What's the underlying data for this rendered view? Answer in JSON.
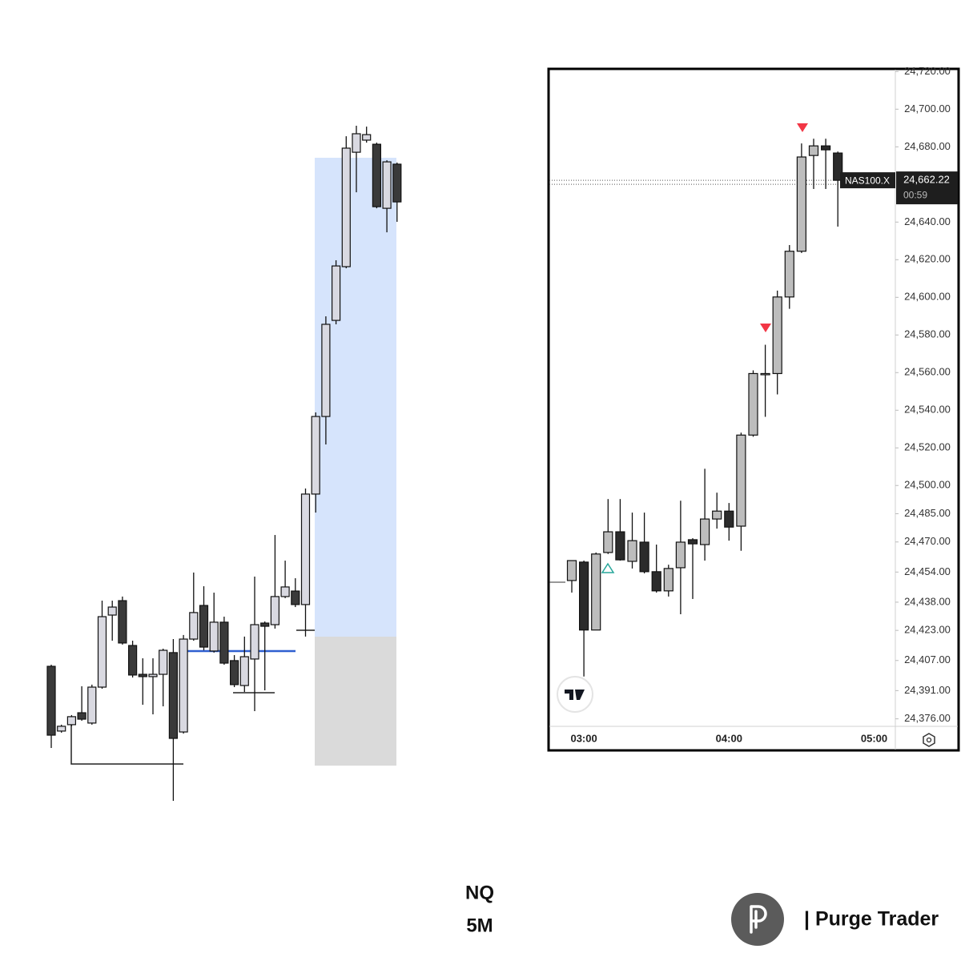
{
  "chart_data": [
    {
      "type": "candlestick",
      "up_color": "#d9d9e1",
      "down_color": "#3a3a3a",
      "open": [
        24393.1,
        24356.7,
        24360.3,
        24367,
        24361.2,
        24381.4,
        24421.9,
        24430,
        24404.8,
        24388.6,
        24387.3,
        24388.6,
        24400.8,
        24356.2,
        24408.4,
        24427.3,
        24401.7,
        24417.9,
        24396.3,
        24382.3,
        24397.2,
        24417.4,
        24416.5,
        24432.3,
        24435.4,
        24427.8,
        24489.9,
        24533.5,
        24587.5,
        24617.7,
        24682,
        24688.8,
        24686.5,
        24650.5,
        24675.3
      ],
      "high": [
        24394.0,
        24360.3,
        24365.7,
        24381.9,
        24382.8,
        24430,
        24430,
        24432.3,
        24407.5,
        24397.6,
        24397.6,
        24403,
        24408.4,
        24410.7,
        24445.8,
        24438.1,
        24434.5,
        24421,
        24399.4,
        24409.8,
        24443.5,
        24418.3,
        24466.9,
        24452.5,
        24442.6,
        24493,
        24535.8,
        24589.8,
        24621.3,
        24691,
        24696.9,
        24696.4,
        24687.4,
        24677.5,
        24676.2
      ],
      "low": [
        24347.2,
        24355.8,
        24359.4,
        24362.5,
        24360.3,
        24380.5,
        24407.5,
        24405.3,
        24386.8,
        24371.5,
        24366.1,
        24370.6,
        24317.5,
        24355.3,
        24407.5,
        24402.1,
        24400.8,
        24394.0,
        24381.4,
        24378.7,
        24367.9,
        24379.6,
        24414.3,
        24431.4,
        24426.4,
        24409.8,
        24479.5,
        24517.8,
        24585.3,
        24616.8,
        24659.5,
        24687.4,
        24650.5,
        24637,
        24642.9
      ],
      "close": [
        24354.4,
        24359.4,
        24364.8,
        24363.4,
        24381.4,
        24421,
        24426.4,
        24406.2,
        24388.2,
        24387.3,
        24388.6,
        24402.1,
        24352.6,
        24408.4,
        24423.3,
        24403.9,
        24417.9,
        24394.9,
        24382.8,
        24398.5,
        24416.5,
        24415.6,
        24432.3,
        24437.7,
        24427.8,
        24489.9,
        24533.5,
        24585.3,
        24618.1,
        24684.3,
        24692.4,
        24691.9,
        24651.4,
        24676.6,
        24654.1
      ]
    },
    {
      "type": "candlestick",
      "up_color": "#bdbdbd",
      "down_color": "#2b2b2b",
      "categories": [
        null,
        "03:00",
        null,
        null,
        null,
        null,
        null,
        null,
        null,
        null,
        null,
        null,
        null,
        "04:00",
        null,
        null,
        null,
        null,
        null,
        null,
        null,
        null,
        null,
        null,
        null,
        "05:00"
      ],
      "open": [
        24449.5,
        24459.3,
        24423.2,
        24464.4,
        24475.4,
        24459.7,
        24469.9,
        24454.2,
        24444.0,
        24456.3,
        24471.2,
        24468.6,
        24482.2,
        24486.4,
        24478.4,
        24526.8,
        24559.1,
        24559.5,
        24600.2,
        24624.5,
        24675.4,
        24680.5,
        24676.7,
        null,
        null,
        null
      ],
      "high": [
        24460.1,
        24460.1,
        24464.4,
        24492.8,
        24492.8,
        24485.6,
        24485.6,
        24468.6,
        24457.9,
        24491.9,
        24472.0,
        24508.9,
        24496.2,
        24490.7,
        24528.1,
        24561.2,
        24574.8,
        24603.6,
        24627.8,
        24681.8,
        24684.3,
        24684.3,
        24677.5,
        null,
        null,
        null
      ],
      "low": [
        24443.1,
        24398.5,
        24423.2,
        24463.6,
        24460.1,
        24455.9,
        24453.3,
        24443.1,
        24441.0,
        24431.6,
        24439.7,
        24460.1,
        24477.1,
        24470.7,
        24465.3,
        24525.9,
        24536.5,
        24548.4,
        24593.9,
        24623.6,
        24657.6,
        24657.6,
        24637.6,
        null,
        null,
        null
      ],
      "close": [
        24460.1,
        24423.2,
        24463.6,
        24475.4,
        24460.5,
        24470.7,
        24454.2,
        24444.0,
        24455.9,
        24469.9,
        24469.0,
        24482.2,
        24486.4,
        24477.9,
        24526.8,
        24559.5,
        24559.5,
        24600.2,
        24624.5,
        24674.6,
        24680.5,
        24678.4,
        24662.22,
        null,
        null,
        null
      ],
      "ylim": [
        24372,
        24721
      ],
      "yticks": [
        {
          "value": 24720,
          "label": "24,720.00"
        },
        {
          "value": 24700,
          "label": "24,700.00"
        },
        {
          "value": 24680,
          "label": "24,680.00"
        },
        {
          "value": 24640,
          "label": "24,640.00"
        },
        {
          "value": 24620,
          "label": "24,620.00"
        },
        {
          "value": 24600,
          "label": "24,600.00"
        },
        {
          "value": 24580,
          "label": "24,580.00"
        },
        {
          "value": 24560,
          "label": "24,560.00"
        },
        {
          "value": 24540,
          "label": "24,540.00"
        },
        {
          "value": 24520,
          "label": "24,520.00"
        },
        {
          "value": 24500,
          "label": "24,500.00"
        },
        {
          "value": 24485,
          "label": "24,485.00"
        },
        {
          "value": 24470,
          "label": "24,470.00"
        },
        {
          "value": 24454,
          "label": "24,454.00"
        },
        {
          "value": 24438,
          "label": "24,438.00"
        },
        {
          "value": 24423,
          "label": "24,423.00"
        },
        {
          "value": 24407,
          "label": "24,407.00"
        },
        {
          "value": 24391,
          "label": "24,391.00"
        },
        {
          "value": 24376,
          "label": "24,376.00"
        }
      ],
      "last_price": {
        "value": 24662.22,
        "label": "24,662.22"
      },
      "countdown": "00:59",
      "symbol": "NAS100.X"
    }
  ],
  "footer": {
    "instrument": "NQ",
    "timeframe": "5M",
    "brand": "| Purge Trader"
  }
}
